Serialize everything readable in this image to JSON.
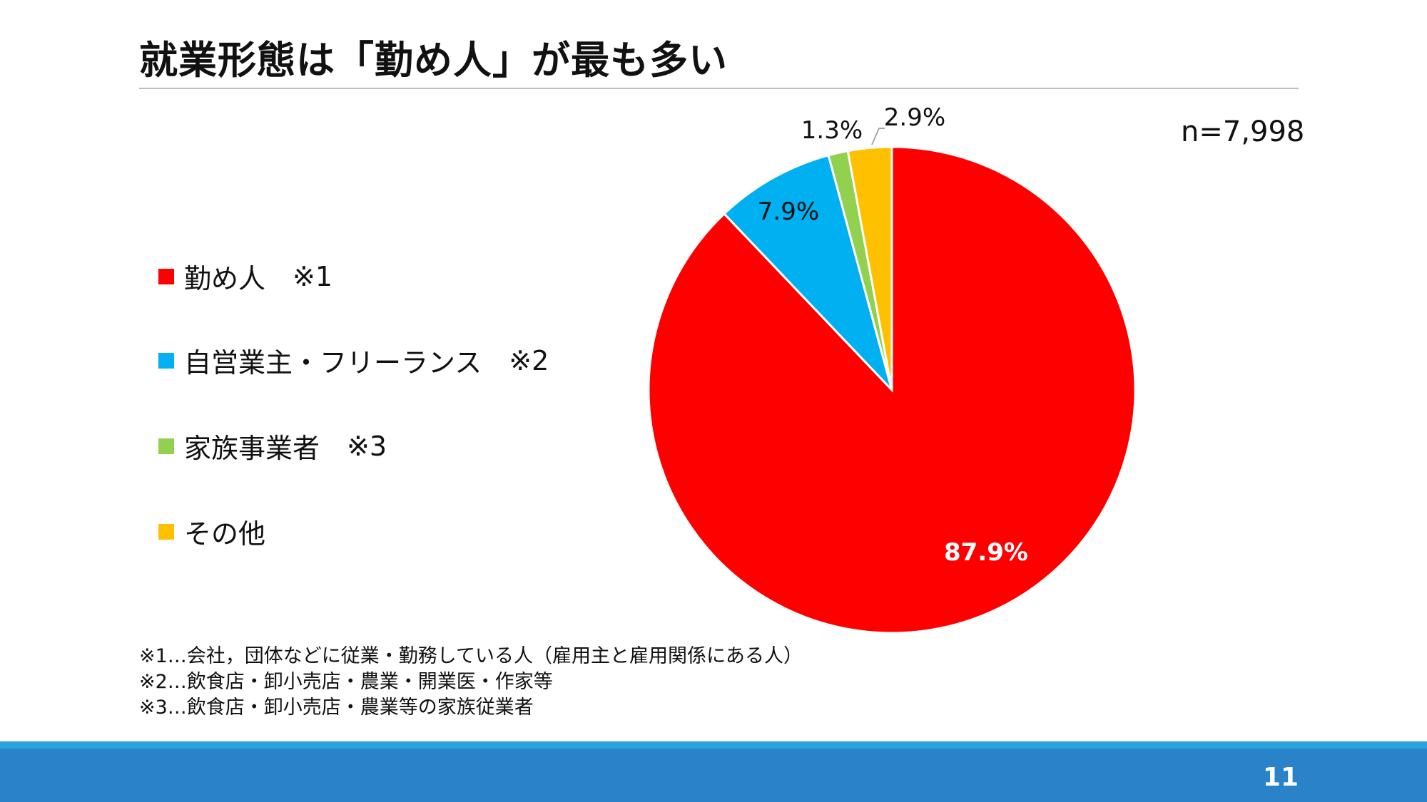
{
  "title": "就業形態は「勤め人」が最も多い",
  "sample_size": "n=7,998",
  "legend": [
    {
      "label": "勤め人",
      "note": "※1",
      "color": "#ff0000"
    },
    {
      "label": "自営業主・フリーランス",
      "note": "※2",
      "color": "#00b0f0"
    },
    {
      "label": "家族事業者",
      "note": "※3",
      "color": "#92d050"
    },
    {
      "label": "その他",
      "note": "",
      "color": "#ffc000"
    }
  ],
  "chart_data": {
    "type": "pie",
    "categories": [
      "勤め人",
      "自営業主・フリーランス",
      "家族事業者",
      "その他"
    ],
    "values": [
      87.9,
      7.9,
      1.3,
      2.9
    ],
    "value_labels": [
      "87.9%",
      "7.9%",
      "1.3%",
      "2.9%"
    ],
    "colors": [
      "#ff0000",
      "#00b0f0",
      "#92d050",
      "#ffc000"
    ],
    "start": "12 o'clock",
    "direction": "clockwise",
    "legend_position": "left"
  },
  "footnotes": [
    "※1…会社，団体などに従業・勤務している人（雇用主と雇用関係にある人）",
    "※2…飲食店・卸小売店・農業・開業医・作家等",
    "※3…飲食店・卸小売店・農業等の家族従業者"
  ],
  "page_number": "11"
}
